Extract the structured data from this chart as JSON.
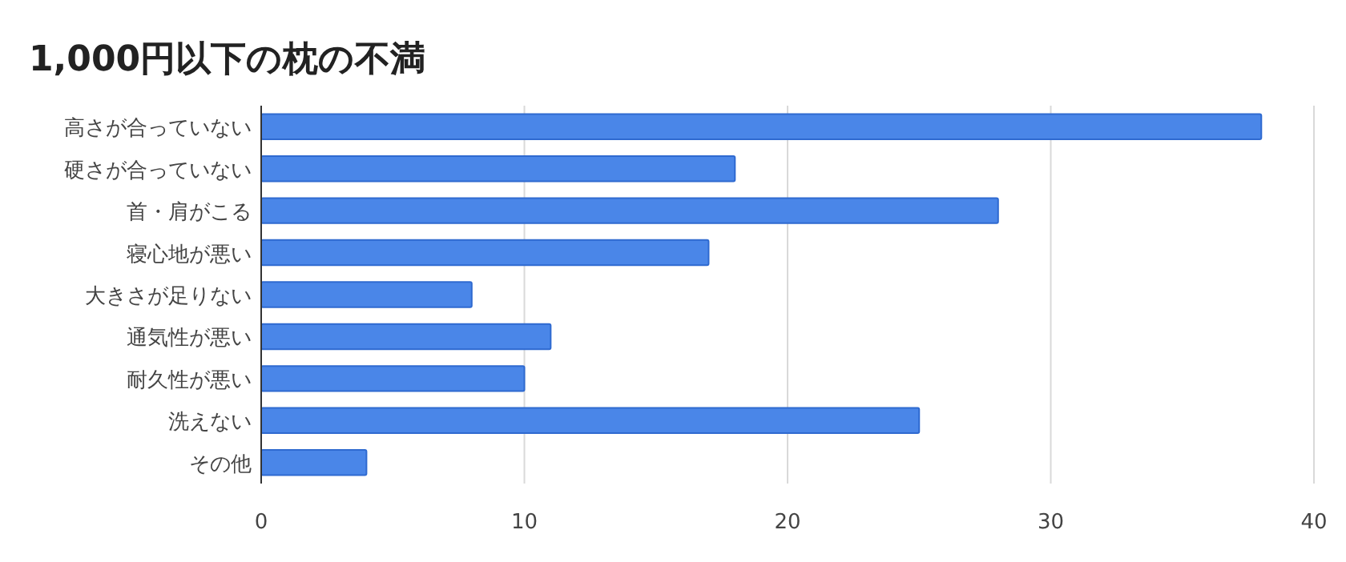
{
  "chart_data": {
    "type": "bar",
    "orientation": "horizontal",
    "title": "1,000円以下の枕の不満",
    "categories": [
      "高さが合っていない",
      "硬さが合っていない",
      "首・肩がこる",
      "寝心地が悪い",
      "大きさが足りない",
      "通気性が悪い",
      "耐久性が悪い",
      "洗えない",
      "その他"
    ],
    "values": [
      38,
      18,
      28,
      17,
      8,
      11,
      10,
      25,
      4
    ],
    "color": "#4a86e8",
    "xlim": [
      0,
      40
    ],
    "xticks": [
      0,
      10,
      20,
      30,
      40
    ],
    "grid": "x"
  }
}
